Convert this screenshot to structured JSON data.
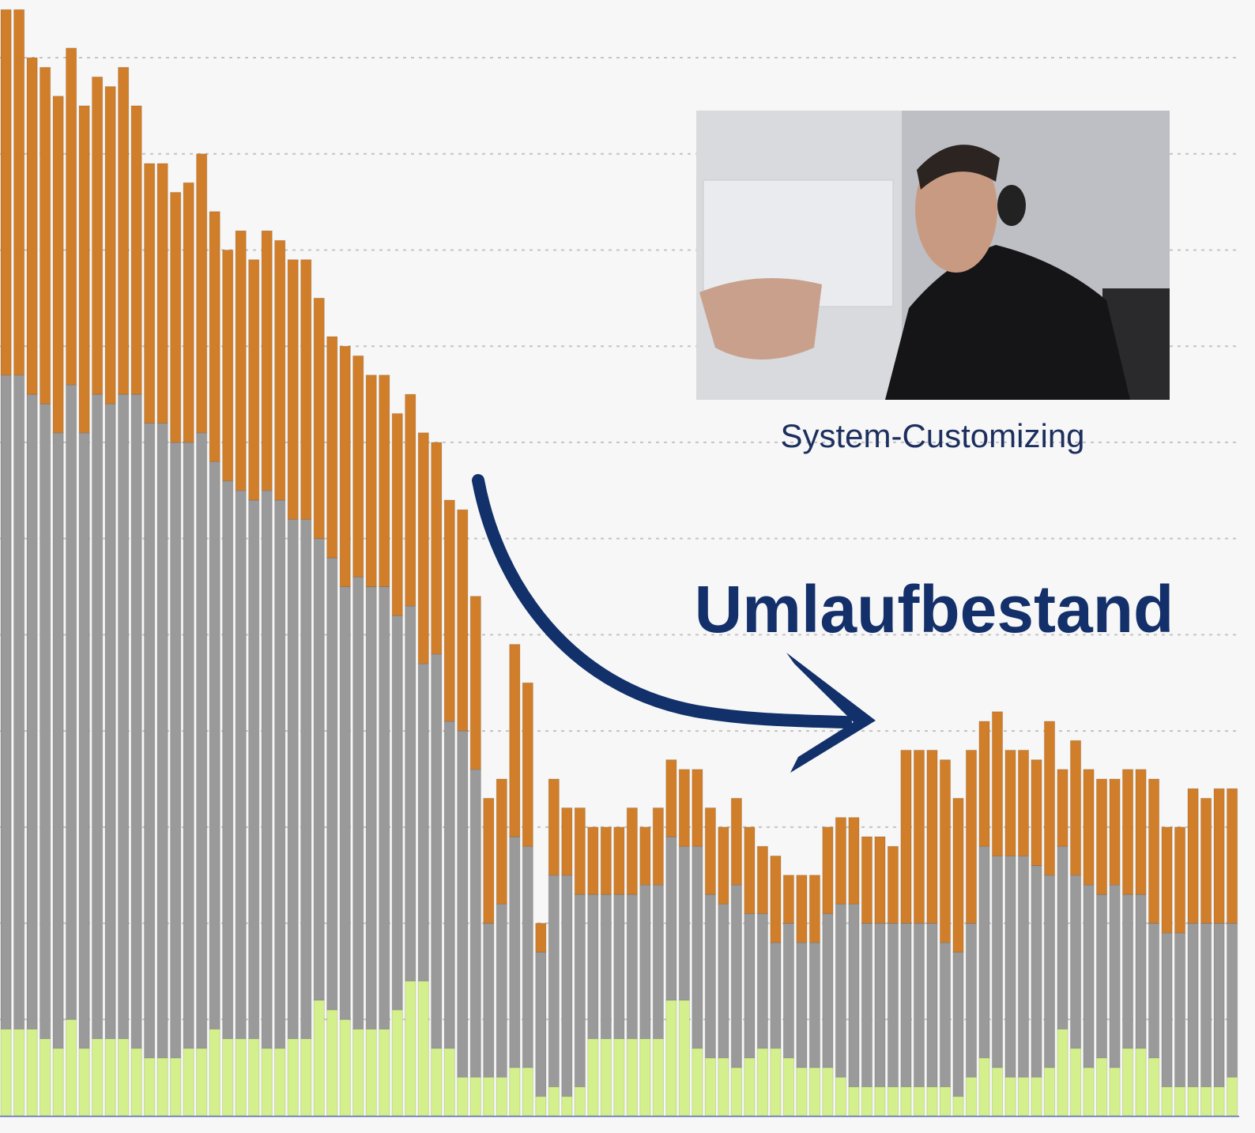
{
  "chart_data": {
    "type": "stacked_bar",
    "annotations": {
      "photo_caption": "System-Customizing",
      "label": "Umlaufbestand"
    },
    "ylim": [
      0,
      11.6
    ],
    "yticks": [
      1,
      2,
      3,
      4,
      5,
      6,
      7,
      8,
      9,
      10,
      11
    ],
    "grid": true,
    "series": [
      {
        "color": "#d4f08c",
        "values": [
          0.9,
          0.9,
          0.9,
          0.8,
          0.7,
          1.0,
          0.7,
          0.8,
          0.8,
          0.8,
          0.7,
          0.6,
          0.6,
          0.6,
          0.7,
          0.7,
          0.9,
          0.8,
          0.8,
          0.8,
          0.7,
          0.7,
          0.8,
          0.8,
          1.2,
          1.1,
          1.0,
          0.9,
          0.9,
          0.9,
          1.1,
          1.4,
          1.4,
          0.7,
          0.7,
          0.4,
          0.4,
          0.4,
          0.4,
          0.5,
          0.5,
          0.2,
          0.3,
          0.2,
          0.3,
          0.8,
          0.8,
          0.8,
          0.8,
          0.8,
          0.8,
          1.2,
          1.2,
          0.7,
          0.6,
          0.6,
          0.5,
          0.6,
          0.7,
          0.7,
          0.6,
          0.5,
          0.5,
          0.5,
          0.4,
          0.3,
          0.3,
          0.3,
          0.3,
          0.3,
          0.3,
          0.3,
          0.3,
          0.2,
          0.4,
          0.6,
          0.5,
          0.4,
          0.4,
          0.4,
          0.5,
          0.9,
          0.7,
          0.5,
          0.6,
          0.5,
          0.7,
          0.7,
          0.6,
          0.3,
          0.3,
          0.3,
          0.3,
          0.3,
          0.4
        ]
      },
      {
        "color": "#9a9a9a",
        "values": [
          6.8,
          6.8,
          6.6,
          6.6,
          6.4,
          6.6,
          6.4,
          6.7,
          6.6,
          6.7,
          6.8,
          6.6,
          6.6,
          6.4,
          6.3,
          6.4,
          5.9,
          5.8,
          5.7,
          5.6,
          5.8,
          5.7,
          5.4,
          5.4,
          4.8,
          4.7,
          4.5,
          4.7,
          4.6,
          4.6,
          4.1,
          3.9,
          3.3,
          4.1,
          3.4,
          3.6,
          3.2,
          1.6,
          1.8,
          2.4,
          2.3,
          1.5,
          2.2,
          2.3,
          2.0,
          1.5,
          1.5,
          1.5,
          1.5,
          1.6,
          1.6,
          1.7,
          1.6,
          2.1,
          1.7,
          1.6,
          1.9,
          1.5,
          1.4,
          1.1,
          1.4,
          1.3,
          1.3,
          1.6,
          1.8,
          1.9,
          1.7,
          1.7,
          1.7,
          1.7,
          1.7,
          1.7,
          1.5,
          1.5,
          1.6,
          2.2,
          2.2,
          2.3,
          2.3,
          2.2,
          2.0,
          1.9,
          1.8,
          1.9,
          1.7,
          1.9,
          1.6,
          1.6,
          1.4,
          1.6,
          1.6,
          1.7,
          1.7,
          1.7,
          1.6
        ]
      },
      {
        "color": "#d07e2a",
        "values": [
          3.8,
          3.8,
          3.5,
          3.5,
          3.5,
          3.5,
          3.4,
          3.3,
          3.3,
          3.4,
          3.0,
          2.7,
          2.7,
          2.6,
          2.7,
          2.9,
          2.6,
          2.4,
          2.7,
          2.5,
          2.7,
          2.7,
          2.7,
          2.7,
          2.5,
          2.3,
          2.5,
          2.3,
          2.2,
          2.2,
          2.1,
          2.2,
          2.4,
          2.2,
          2.3,
          2.3,
          1.8,
          1.3,
          1.3,
          2.0,
          1.7,
          0.3,
          1.0,
          0.7,
          0.9,
          0.7,
          0.7,
          0.7,
          0.9,
          0.6,
          0.8,
          0.8,
          0.8,
          0.8,
          0.9,
          0.8,
          0.9,
          0.9,
          0.7,
          0.9,
          0.5,
          0.7,
          0.7,
          0.9,
          0.9,
          0.9,
          0.9,
          0.9,
          0.8,
          1.8,
          1.8,
          1.8,
          1.9,
          1.6,
          1.8,
          1.3,
          1.5,
          1.1,
          1.1,
          1.1,
          1.6,
          0.8,
          1.4,
          1.2,
          1.2,
          1.1,
          1.3,
          1.3,
          1.5,
          1.1,
          1.1,
          1.4,
          1.3,
          1.4,
          1.4
        ]
      }
    ]
  }
}
